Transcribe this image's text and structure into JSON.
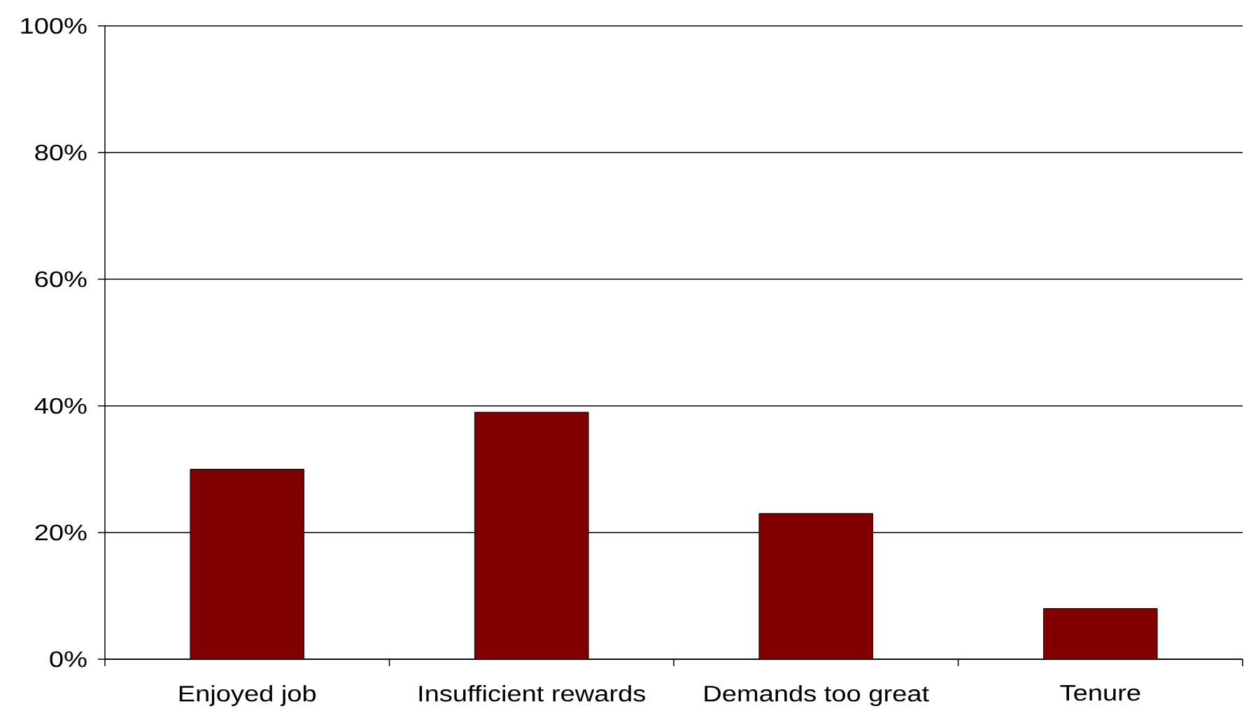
{
  "chart_data": {
    "type": "bar",
    "categories": [
      "Enjoyed job",
      "Insufficient rewards",
      "Demands too great",
      "Tenure"
    ],
    "values": [
      30,
      39,
      23,
      8
    ],
    "color": "#800000",
    "ylim": [
      0,
      100
    ],
    "yticks": [
      {
        "value": 0,
        "label": "0%"
      },
      {
        "value": 20,
        "label": "20%"
      },
      {
        "value": 40,
        "label": "40%"
      },
      {
        "value": 60,
        "label": "60%"
      },
      {
        "value": 80,
        "label": "80%"
      },
      {
        "value": 100,
        "label": "100%"
      }
    ],
    "grid": "y"
  }
}
